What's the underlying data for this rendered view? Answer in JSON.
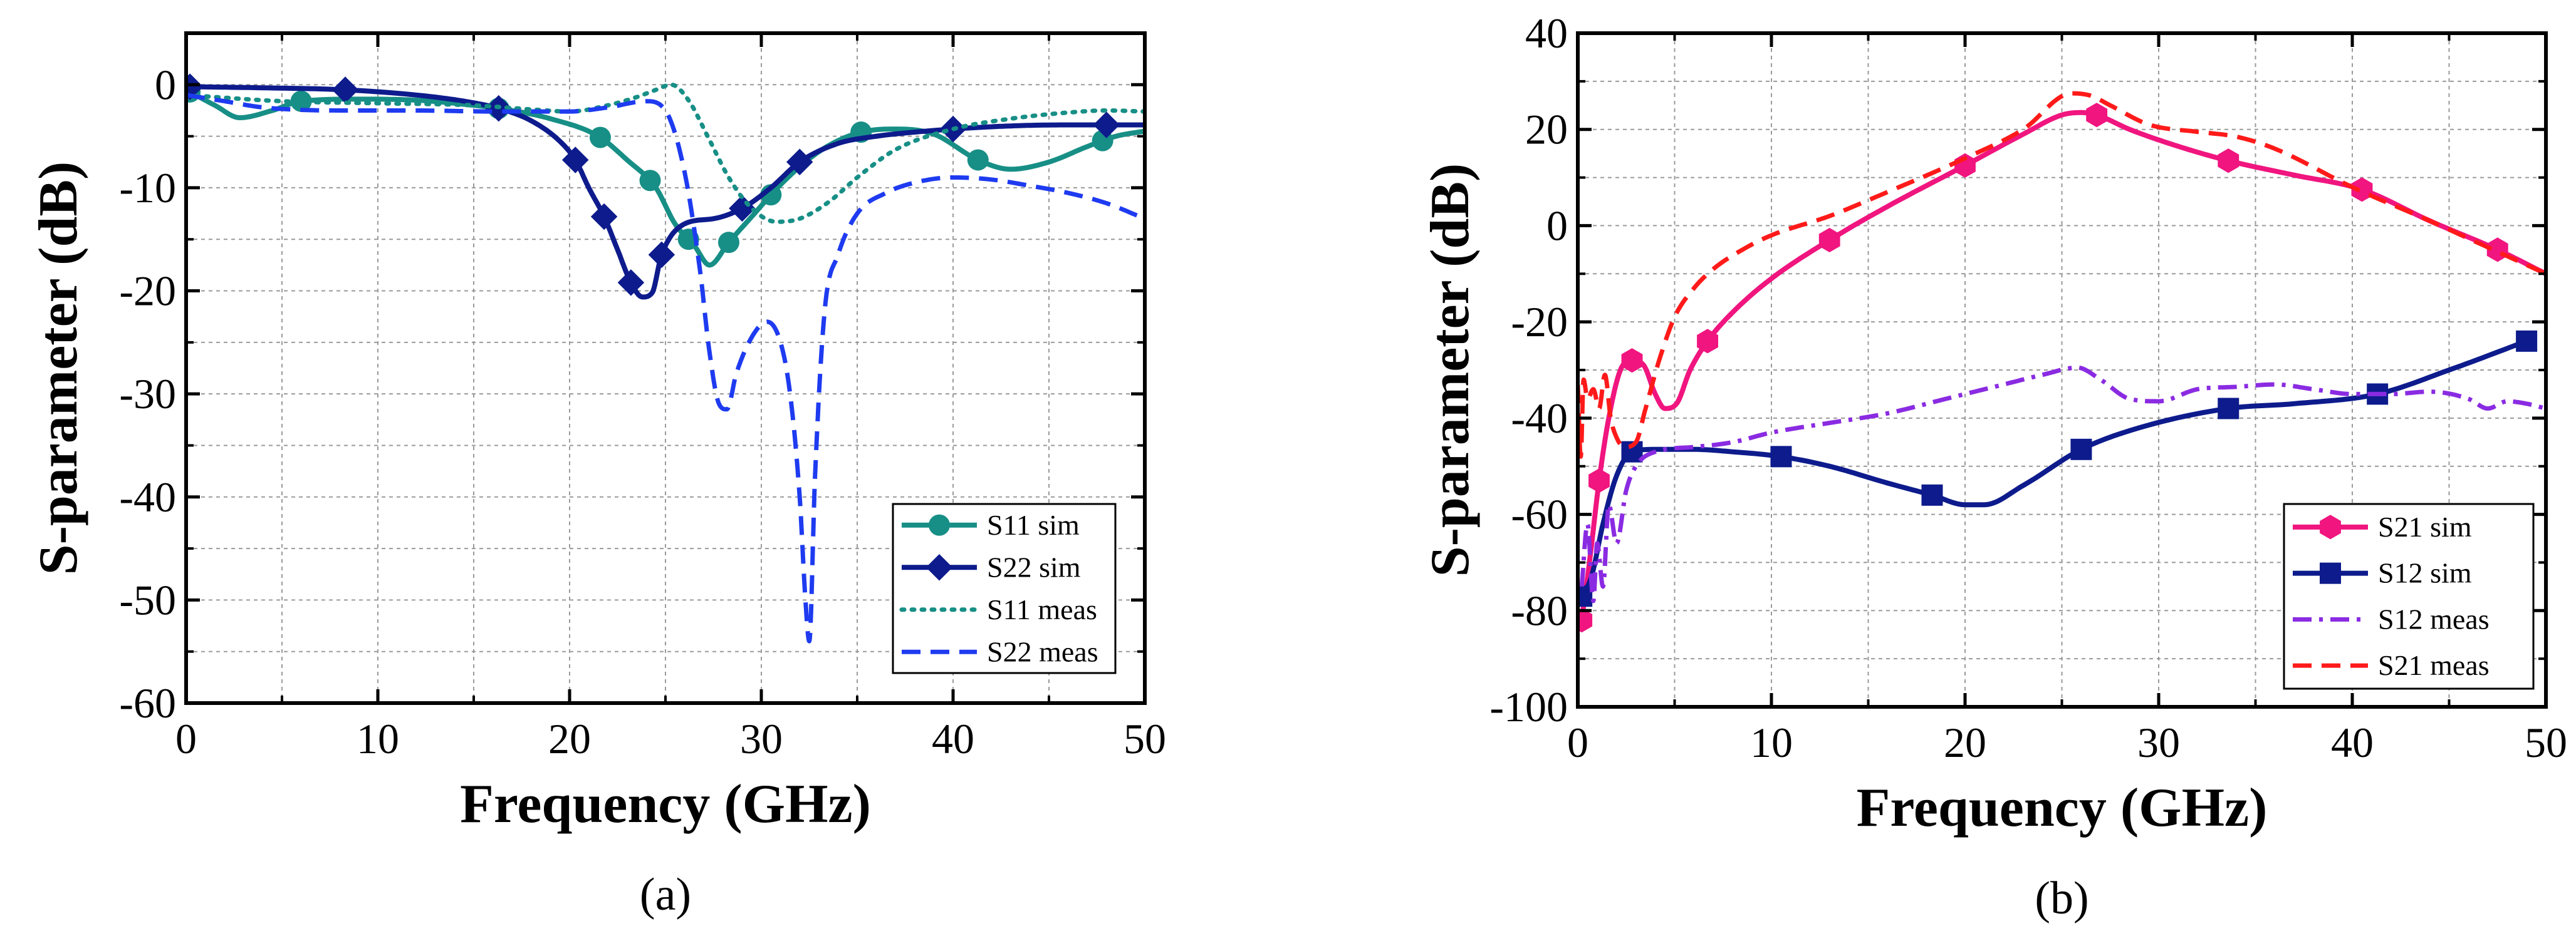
{
  "chart_data": [
    {
      "type": "line",
      "caption": "(a)",
      "xlabel": "Frequency (GHz)",
      "ylabel": "S-parameter (dB)",
      "xlim": [
        0,
        50
      ],
      "ylim": [
        -60,
        5
      ],
      "xticks": [
        0,
        10,
        20,
        30,
        40,
        50
      ],
      "yticks": [
        0,
        -10,
        -20,
        -30,
        -40,
        -50,
        -60
      ],
      "grid": true,
      "legend_position": "bottom-right",
      "series": [
        {
          "name": "S11 sim",
          "color": "#178F86",
          "style": "solid",
          "marker": "circle",
          "x": [
            0,
            1.5,
            2.8,
            4.5,
            6,
            9,
            12,
            15,
            17,
            19,
            21.5,
            23,
            24.5,
            25.5,
            26.5,
            27.3,
            28.3,
            29.5,
            31,
            33,
            35,
            37,
            39,
            41.3,
            43,
            45,
            47,
            48.5,
            50
          ],
          "y": [
            -0.5,
            -2,
            -3.2,
            -2.5,
            -1.6,
            -1.4,
            -1.5,
            -2,
            -2.5,
            -3.3,
            -5,
            -7.3,
            -10,
            -13.5,
            -15.6,
            -17.5,
            -15.3,
            -12.8,
            -9.7,
            -6.5,
            -4.7,
            -4.3,
            -4.8,
            -7.3,
            -8.2,
            -7.5,
            -6,
            -5,
            -4.5
          ],
          "marker_x": [
            0.2,
            6,
            16.3,
            21.6,
            24.2,
            26.2,
            28.3,
            30.5,
            35.2,
            41.3,
            47.8
          ]
        },
        {
          "name": "S22 sim",
          "color": "#0D1B8C",
          "style": "solid",
          "marker": "diamond",
          "x": [
            0.2,
            4,
            8.3,
            12,
            14.5,
            16.3,
            18,
            19.5,
            20.3,
            21,
            21.8,
            22.5,
            23.2,
            23.8,
            24.3,
            24.8,
            26,
            27.5,
            29,
            30.5,
            32,
            34,
            36,
            38,
            40,
            43,
            46,
            50
          ],
          "y": [
            -0.2,
            -0.3,
            -0.5,
            -1,
            -1.6,
            -2.3,
            -3.5,
            -5.5,
            -7.3,
            -10,
            -12.8,
            -16,
            -19.2,
            -20.6,
            -20.2,
            -16.5,
            -13.5,
            -13,
            -12,
            -10,
            -7.5,
            -5.7,
            -5,
            -4.6,
            -4.3,
            -4,
            -3.9,
            -3.9
          ],
          "marker_x": [
            0.2,
            8.3,
            16.3,
            20.3,
            21.8,
            23.2,
            24.8,
            29,
            32,
            40,
            48
          ]
        },
        {
          "name": "S11 meas",
          "color": "#178F86",
          "style": "dotted",
          "x": [
            0,
            5,
            10,
            15,
            18,
            20,
            22,
            23.5,
            24.5,
            25.3,
            26.2,
            27.2,
            28.3,
            29.5,
            30.8,
            32,
            33.5,
            35,
            37,
            40,
            43,
            46,
            48,
            50
          ],
          "y": [
            -1,
            -1.6,
            -1.8,
            -2,
            -2.4,
            -2.6,
            -2,
            -1.2,
            -0.5,
            0,
            -1.5,
            -5,
            -9,
            -12,
            -13.3,
            -13,
            -11.4,
            -9,
            -6.3,
            -4.3,
            -3.3,
            -2.7,
            -2.5,
            -2.6
          ]
        },
        {
          "name": "S22 meas",
          "color": "#1E3BF0",
          "style": "dashed",
          "x": [
            0,
            2,
            4,
            8,
            12,
            16,
            20,
            22,
            24,
            25,
            26,
            26.8,
            27.3,
            27.8,
            28.2,
            28.7,
            29.5,
            30.3,
            31,
            31.5,
            32,
            32.3,
            32.5,
            32.8,
            33.3,
            34,
            35,
            36.5,
            38,
            40,
            42,
            44,
            46,
            48,
            50
          ],
          "y": [
            -1,
            -1.6,
            -2.2,
            -2.5,
            -2.5,
            -2.6,
            -2.6,
            -2.2,
            -1.6,
            -2.5,
            -8.5,
            -18,
            -26,
            -31,
            -31.5,
            -28,
            -24.5,
            -23,
            -25,
            -30,
            -40,
            -50,
            -54,
            -38,
            -22,
            -16.5,
            -12.5,
            -10.5,
            -9.5,
            -9,
            -9.2,
            -9.8,
            -10.5,
            -11.5,
            -13
          ]
        }
      ]
    },
    {
      "type": "line",
      "caption": "(b)",
      "xlabel": "Frequency (GHz)",
      "ylabel": "S-parameter (dB)",
      "xlim": [
        0,
        50
      ],
      "ylim": [
        -100,
        40
      ],
      "xticks": [
        0,
        10,
        20,
        30,
        40,
        50
      ],
      "yticks": [
        40,
        20,
        0,
        -20,
        -40,
        -60,
        -80,
        -100
      ],
      "grid": true,
      "legend_position": "bottom-right",
      "series": [
        {
          "name": "S21 sim",
          "color": "#F0157F",
          "style": "solid",
          "marker": "hexagon",
          "x": [
            0.2,
            0.6,
            1.1,
            1.6,
            2.2,
            2.8,
            3.4,
            4,
            4.5,
            5.1,
            5.8,
            6.7,
            8,
            10,
            13,
            16,
            20,
            23,
            25,
            26,
            26.8,
            28.5,
            31,
            33.6,
            37,
            40.5,
            44,
            47.5,
            50
          ],
          "y": [
            -82,
            -70,
            -53,
            -40,
            -30,
            -28,
            -29,
            -35,
            -38,
            -37,
            -30,
            -24,
            -18,
            -11,
            -3,
            4,
            12.5,
            19,
            23,
            23.5,
            23,
            20,
            16.5,
            13.5,
            10.5,
            7.5,
            1,
            -5,
            -10
          ],
          "marker_x": [
            0.2,
            1.1,
            2.8,
            6.7,
            13,
            20,
            26.8,
            33.6,
            40.5,
            47.5
          ]
        },
        {
          "name": "S12 sim",
          "color": "#0D1B8C",
          "style": "solid",
          "marker": "square",
          "x": [
            0.2,
            0.7,
            1.3,
            2,
            2.8,
            4,
            6,
            8,
            10.5,
            13,
            16,
            18.3,
            20,
            21,
            23,
            26,
            29,
            33.6,
            37,
            41.3,
            45,
            49
          ],
          "y": [
            -77,
            -73,
            -62,
            -52,
            -47,
            -46.5,
            -46.5,
            -47,
            -48,
            -50,
            -53.5,
            -56,
            -58,
            -58,
            -54,
            -46.5,
            -42,
            -38,
            -37,
            -35,
            -30,
            -24
          ],
          "marker_x": [
            0.2,
            2.8,
            10.5,
            18.3,
            26,
            33.6,
            41.3,
            49
          ]
        },
        {
          "name": "S12 meas",
          "color": "#8A2BE2",
          "style": "dashdot",
          "x": [
            0.2,
            0.5,
            0.8,
            1,
            1.3,
            1.6,
            2,
            2.5,
            3,
            4,
            6,
            8,
            10,
            13,
            16,
            19,
            22,
            24,
            25.8,
            27,
            28.5,
            30,
            32,
            34,
            36,
            38,
            40,
            42,
            44,
            46,
            47,
            48,
            49,
            50
          ],
          "y": [
            -75,
            -62,
            -78,
            -66,
            -75,
            -58,
            -66,
            -55,
            -50,
            -47,
            -46,
            -45,
            -43,
            -41,
            -39,
            -36,
            -33,
            -31,
            -29.5,
            -32,
            -36,
            -36.5,
            -34,
            -33.5,
            -33,
            -34,
            -35,
            -35,
            -34.5,
            -36,
            -38,
            -36.5,
            -37,
            -38
          ]
        },
        {
          "name": "S21 meas",
          "color": "#FF1A1A",
          "style": "dashed",
          "x": [
            0,
            0.15,
            0.3,
            0.5,
            0.8,
            1.1,
            1.4,
            1.7,
            2,
            2.4,
            3,
            3.5,
            4.2,
            5,
            6,
            7,
            8.5,
            10,
            13,
            16,
            20,
            23,
            25.5,
            26.5,
            27.5,
            29.5,
            32,
            34,
            36,
            40,
            44,
            47,
            50
          ],
          "y": [
            -33,
            -48,
            -32,
            -36,
            -34,
            -38,
            -31,
            -40,
            -44,
            -46,
            -45,
            -38,
            -28,
            -19,
            -13,
            -9,
            -5,
            -2,
            2,
            7,
            14,
            20,
            27.5,
            27,
            25,
            21,
            19.5,
            18.5,
            16,
            8,
            1,
            -4.5,
            -10
          ]
        }
      ]
    }
  ]
}
